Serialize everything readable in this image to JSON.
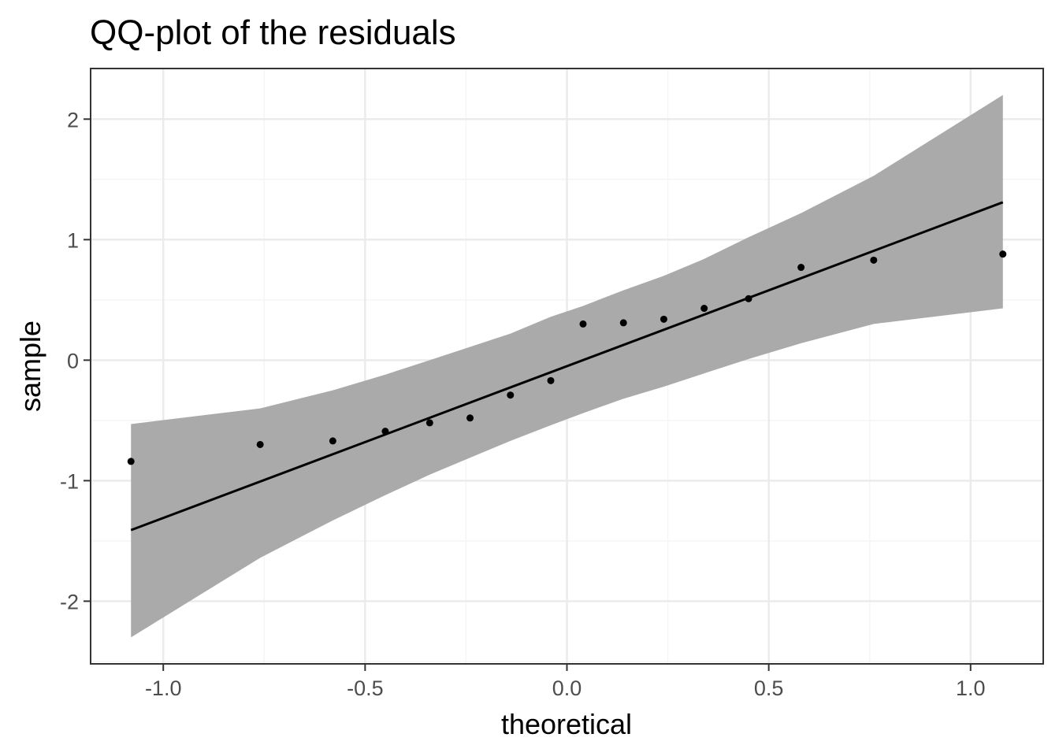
{
  "chart_data": {
    "type": "scatter",
    "title": "QQ-plot of the residuals",
    "xlabel": "theoretical",
    "ylabel": "sample",
    "xlim": [
      -1.18,
      1.18
    ],
    "ylim": [
      -2.52,
      2.42
    ],
    "grid": true,
    "x_ticks": [
      {
        "value": -1.0,
        "label": "-1.0"
      },
      {
        "value": -0.5,
        "label": "-0.5"
      },
      {
        "value": 0.0,
        "label": "0.0"
      },
      {
        "value": 0.5,
        "label": "0.5"
      },
      {
        "value": 1.0,
        "label": "1.0"
      }
    ],
    "y_ticks": [
      {
        "value": -2,
        "label": "-2"
      },
      {
        "value": -1,
        "label": "-1"
      },
      {
        "value": 0,
        "label": "0"
      },
      {
        "value": 1,
        "label": "1"
      },
      {
        "value": 2,
        "label": "2"
      }
    ],
    "points": {
      "x": [
        -1.08,
        -0.76,
        -0.58,
        -0.45,
        -0.34,
        -0.24,
        -0.14,
        -0.04,
        0.04,
        0.14,
        0.24,
        0.34,
        0.45,
        0.58,
        0.76,
        1.08
      ],
      "y": [
        -0.84,
        -0.7,
        -0.67,
        -0.59,
        -0.52,
        -0.48,
        -0.29,
        -0.17,
        0.3,
        0.31,
        0.34,
        0.43,
        0.51,
        0.77,
        0.83,
        0.88
      ]
    },
    "reference_line": {
      "x": [
        -1.08,
        1.08
      ],
      "y": [
        -1.41,
        1.31
      ]
    },
    "confidence_band": {
      "x": [
        -1.08,
        -0.76,
        -0.58,
        -0.45,
        -0.34,
        -0.24,
        -0.14,
        -0.04,
        0.04,
        0.14,
        0.24,
        0.34,
        0.45,
        0.58,
        0.76,
        1.08
      ],
      "upper": [
        -0.53,
        -0.4,
        -0.25,
        -0.12,
        0.0,
        0.11,
        0.22,
        0.36,
        0.45,
        0.58,
        0.7,
        0.84,
        1.02,
        1.22,
        1.53,
        2.2
      ],
      "lower": [
        -2.3,
        -1.64,
        -1.33,
        -1.12,
        -0.95,
        -0.81,
        -0.67,
        -0.54,
        -0.44,
        -0.32,
        -0.22,
        -0.11,
        0.01,
        0.14,
        0.3,
        0.43
      ]
    },
    "colors": {
      "points": "#000000",
      "line": "#000000",
      "band": "#aaaaaa",
      "grid_major": "#ebebeb",
      "grid_minor": "#f5f5f5",
      "panel_border": "#333333",
      "tick_label": "#4d4d4d"
    }
  }
}
